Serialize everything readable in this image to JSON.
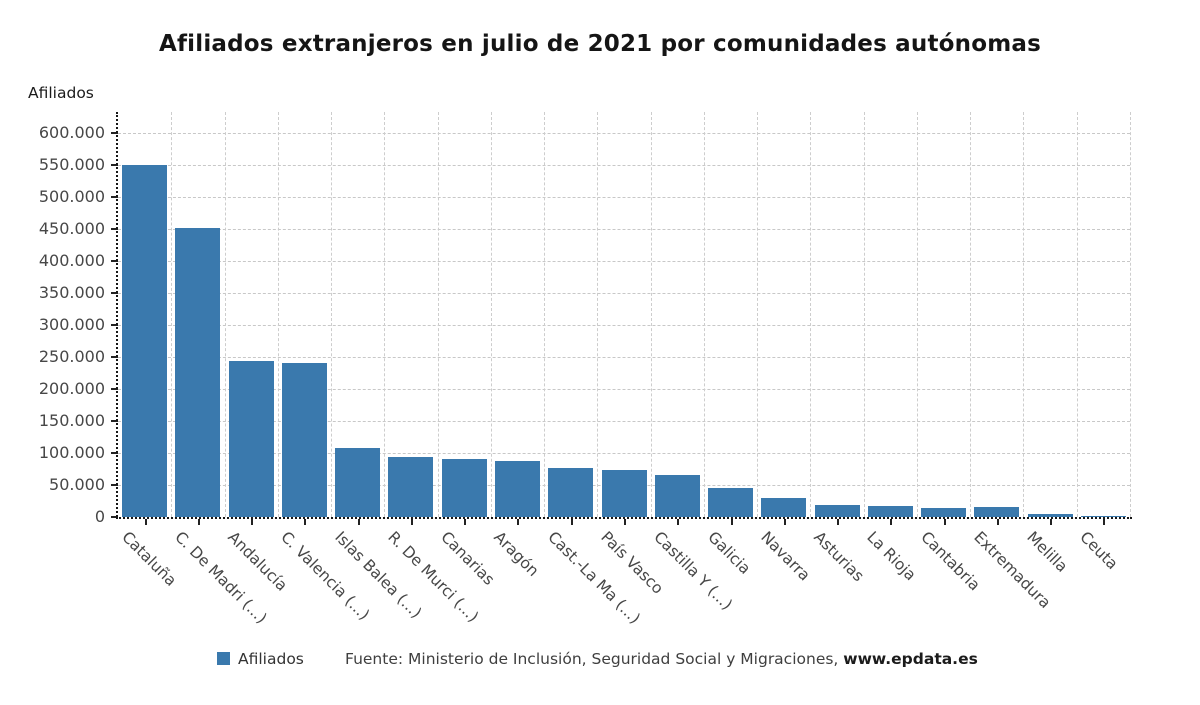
{
  "title": "Afiliados extranjeros en julio de 2021 por comunidades autónomas",
  "y_axis_title": "Afiliados",
  "legend": {
    "label": "Afiliados",
    "color": "#3a79ad"
  },
  "source": {
    "prefix": "Fuente: Ministerio de Inclusión, Seguridad Social y Migraciones, ",
    "link": "www.epdata.es"
  },
  "chart_data": {
    "type": "bar",
    "title": "Afiliados extranjeros en julio de 2021 por comunidades autónomas",
    "xlabel": "",
    "ylabel": "Afiliados",
    "ylim": [
      0,
      600000
    ],
    "ytick_step": 50000,
    "grid": true,
    "legend_position": "bottom-left",
    "bar_color": "#3a79ad",
    "categories": [
      "Cataluña",
      "C. De Madri (...)",
      "Andalucía",
      "C. Valencia (...)",
      "Islas Balea (...)",
      "R. De Murci (...)",
      "Canarias",
      "Aragón",
      "Cast.-La Ma (...)",
      "País Vasco",
      "Castilla Y (...)",
      "Galicia",
      "Navarra",
      "Asturias",
      "La Rioja",
      "Cantabria",
      "Extremadura",
      "Melilla",
      "Ceuta"
    ],
    "values": [
      550000,
      452000,
      244000,
      240000,
      108000,
      93000,
      90000,
      88000,
      76000,
      74000,
      66000,
      45000,
      30000,
      18000,
      17000,
      14000,
      15000,
      4000,
      1500
    ]
  }
}
